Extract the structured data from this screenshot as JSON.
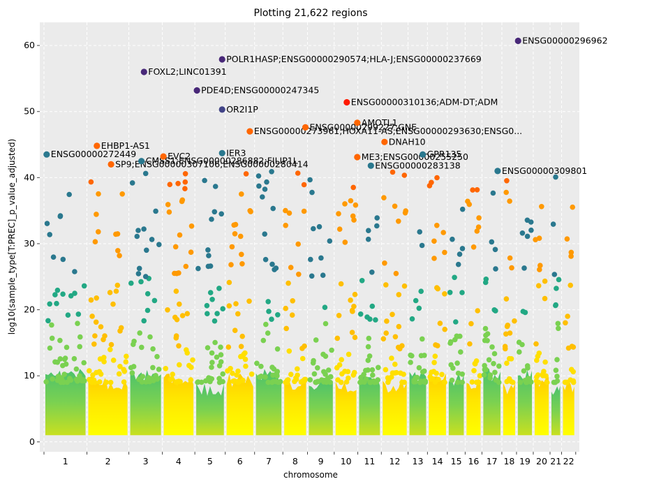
{
  "chart_data": {
    "type": "scatter",
    "title": "Plotting 21,622 regions",
    "xlabel": "chromosome",
    "ylabel": "log10(sample_type[T:PREC]_p_value_adjusted)",
    "ylim": [
      -1.5,
      63.5
    ],
    "yticks": [
      0,
      10,
      20,
      30,
      40,
      50,
      60
    ],
    "grid": true,
    "colormap": "viridis-to-yellow (green/teal/purple for odd chromosomes, yellow/orange/red for even chromosomes)",
    "colors": {
      "plot_bg": "#ebebeb",
      "grid": "#ffffff",
      "odd_low": "#7ad151",
      "odd_mid": "#22a884",
      "odd_high": "#2a788e",
      "odd_top": "#414487",
      "odd_peak": "#482878",
      "even_low": "#ffff00",
      "even_mid": "#ffbf00",
      "even_high": "#ff9900",
      "even_top": "#ff6600",
      "even_peak": "#ff1a00"
    },
    "chromosomes": [
      {
        "label": "1",
        "start": 0,
        "end": 8.2
      },
      {
        "label": "2",
        "start": 8.2,
        "end": 16.2
      },
      {
        "label": "3",
        "start": 16.2,
        "end": 22.6
      },
      {
        "label": "4",
        "start": 22.6,
        "end": 28.8
      },
      {
        "label": "5",
        "start": 28.8,
        "end": 34.6
      },
      {
        "label": "6",
        "start": 34.6,
        "end": 40.2
      },
      {
        "label": "7",
        "start": 40.2,
        "end": 45.6
      },
      {
        "label": "8",
        "start": 45.6,
        "end": 50.3
      },
      {
        "label": "9",
        "start": 50.3,
        "end": 55.4
      },
      {
        "label": "10",
        "start": 55.4,
        "end": 59.9
      },
      {
        "label": "11",
        "start": 59.9,
        "end": 64.4
      },
      {
        "label": "12",
        "start": 64.4,
        "end": 69.5
      },
      {
        "label": "13",
        "start": 69.5,
        "end": 73.2
      },
      {
        "label": "14",
        "start": 73.2,
        "end": 77.0
      },
      {
        "label": "15",
        "start": 77.0,
        "end": 80.4
      },
      {
        "label": "16",
        "start": 80.4,
        "end": 83.6
      },
      {
        "label": "17",
        "start": 83.6,
        "end": 87.4
      },
      {
        "label": "18",
        "start": 87.4,
        "end": 90.2
      },
      {
        "label": "19",
        "start": 90.2,
        "end": 93.4
      },
      {
        "label": "20",
        "start": 93.4,
        "end": 96.6
      },
      {
        "label": "21",
        "start": 96.6,
        "end": 98.8
      },
      {
        "label": "22",
        "start": 98.8,
        "end": 101.5
      }
    ],
    "xlim": [
      -0.8,
      102.2
    ],
    "labeled_points": [
      {
        "x": 0.5,
        "y": 43.5,
        "label": "ENSG00000272449"
      },
      {
        "x": 10.1,
        "y": 44.8,
        "label": "EHBP1-AS1"
      },
      {
        "x": 12.8,
        "y": 42.0,
        "label": "SP9;ENSG00000307106;ENSG00000280414"
      },
      {
        "x": 19.1,
        "y": 56.0,
        "label": "FOXL2;LINC01391"
      },
      {
        "x": 18.6,
        "y": 42.5,
        "label": "CMSS1;ENSG00000286882;FILIP1L"
      },
      {
        "x": 22.8,
        "y": 43.2,
        "label": "EVC2"
      },
      {
        "x": 29.2,
        "y": 53.2,
        "label": "PDE4D;ENSG00000247345"
      },
      {
        "x": 34.0,
        "y": 57.9,
        "label": "POLR1HASP;ENSG00000290574;HLA-J;ENSG00000237669"
      },
      {
        "x": 34.0,
        "y": 50.3,
        "label": "OR2I1P"
      },
      {
        "x": 34.0,
        "y": 43.7,
        "label": "IER3"
      },
      {
        "x": 39.3,
        "y": 47.0,
        "label": "ENSG00000273961;HOXA11-AS;ENSG00000293630;ENSG0..."
      },
      {
        "x": 49.9,
        "y": 47.6,
        "label": "ENSG00000299227;GNE"
      },
      {
        "x": 57.8,
        "y": 51.4,
        "label": "ENSG00000310136;ADM-DT;ADM"
      },
      {
        "x": 59.8,
        "y": 48.3,
        "label": "AMOTL1"
      },
      {
        "x": 59.8,
        "y": 43.1,
        "label": "ME3;ENSG00000255250"
      },
      {
        "x": 62.4,
        "y": 41.8,
        "label": "ENSG00000283138"
      },
      {
        "x": 65.0,
        "y": 45.4,
        "label": "DNAH10"
      },
      {
        "x": 72.3,
        "y": 43.5,
        "label": "GPR135"
      },
      {
        "x": 86.6,
        "y": 41.0,
        "label": "ENSG00000309801"
      },
      {
        "x": 90.5,
        "y": 60.7,
        "label": "ENSG00000296962"
      }
    ]
  }
}
